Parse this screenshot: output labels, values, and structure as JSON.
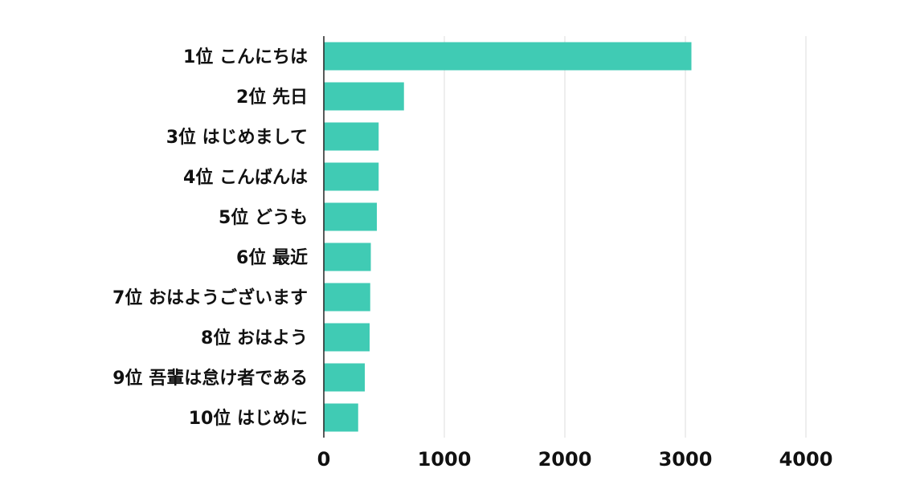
{
  "chart_data": {
    "type": "bar",
    "orientation": "horizontal",
    "title": "",
    "xlabel": "",
    "ylabel": "",
    "categories": [
      "1位 こんにちは",
      "2位 先日",
      "3位 はじめまして",
      "4位 こんばんは",
      "5位 どうも",
      "6位 最近",
      "7位 おはようございます",
      "8位 おはよう",
      "9位 吾輩は怠け者である",
      "10位 はじめに"
    ],
    "values": [
      3050,
      665,
      455,
      455,
      440,
      390,
      385,
      380,
      340,
      285
    ],
    "xlim": [
      0,
      4000
    ],
    "x_ticks": [
      0,
      1000,
      2000,
      3000,
      4000
    ],
    "x_tick_labels": [
      "0",
      "1000",
      "2000",
      "3000",
      "4000"
    ],
    "grid": "vertical",
    "legend": "none",
    "bar_color": "#40cbb4",
    "grid_color": "#dddddd",
    "axis_color": "#222222",
    "label_color": "#111111"
  }
}
